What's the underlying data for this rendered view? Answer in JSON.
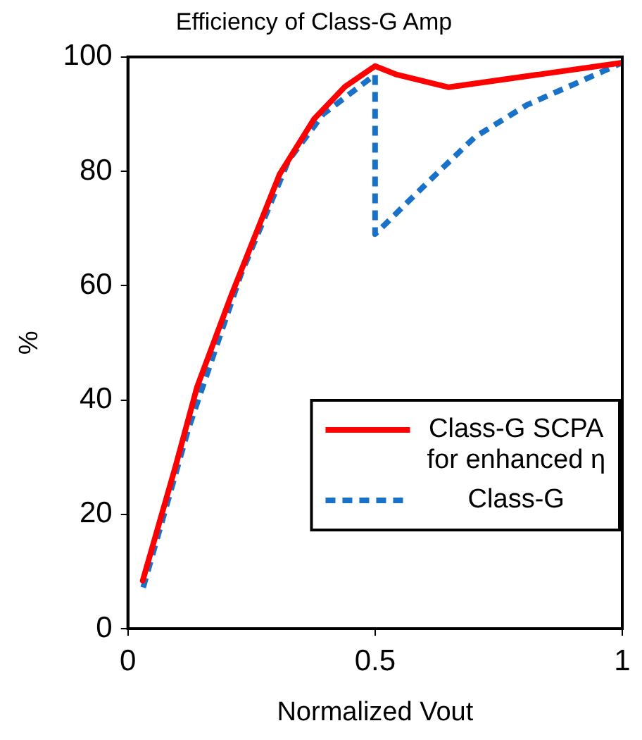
{
  "chart_data": {
    "type": "line",
    "title": "Efficiency of Class-G Amp",
    "xlabel": "Normalized Vout",
    "ylabel": "%",
    "xlim": [
      0,
      1
    ],
    "xticks": [
      0,
      0.5,
      1
    ],
    "ylim": [
      0,
      100
    ],
    "yticks": [
      0,
      20,
      40,
      60,
      80,
      100
    ],
    "grid": false,
    "legend": "bottom right",
    "series": [
      {
        "name": "Class-G SCPA for enhanced η",
        "color": "#ff0000",
        "line_style": "solid",
        "x": [
          0.03,
          0.097,
          0.14,
          0.21,
          0.307,
          0.377,
          0.439,
          0.5,
          0.544,
          0.649,
          1.0
        ],
        "values": [
          8.4,
          28.6,
          42.3,
          58.5,
          79.5,
          89.2,
          94.8,
          98.4,
          96.9,
          94.7,
          99
        ]
      },
      {
        "name": "Class-G",
        "color": "#1a72c8",
        "line_style": "dashed",
        "x": [
          0.031,
          0.123,
          0.228,
          0.325,
          0.395,
          0.5,
          0.5,
          0.614,
          0.702,
          0.807,
          0.912,
          1.0
        ],
        "values": [
          7.2,
          35.1,
          61.8,
          81.9,
          90,
          96.9,
          69,
          78.7,
          86,
          91.6,
          95.6,
          99
        ]
      }
    ]
  }
}
